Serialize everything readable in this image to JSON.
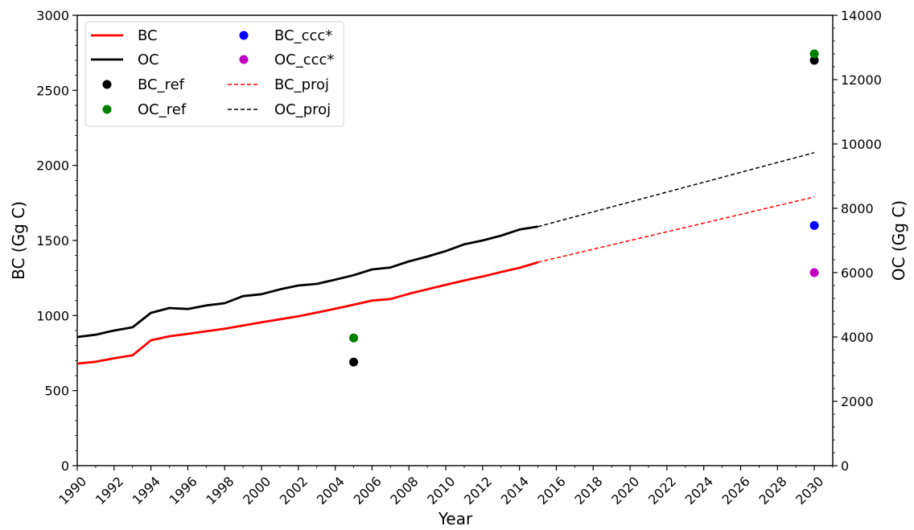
{
  "chart_data": {
    "type": "line",
    "xlabel": "Year",
    "ylabel_left": "BC (Gg C)",
    "ylabel_right": "OC (Gg C)",
    "xlim": [
      1990,
      2031
    ],
    "ylim_left": [
      0,
      3000
    ],
    "ylim_right": [
      0,
      14000
    ],
    "x_ticks": [
      "1990",
      "1992",
      "1994",
      "1996",
      "1998",
      "2000",
      "2002",
      "2004",
      "2006",
      "2008",
      "2010",
      "2012",
      "2014",
      "2016",
      "2018",
      "2020",
      "2022",
      "2024",
      "2026",
      "2028",
      "2030"
    ],
    "y_ticks_left": [
      "0",
      "500",
      "1000",
      "1500",
      "2000",
      "2500",
      "3000"
    ],
    "y_ticks_right": [
      "0",
      "2000",
      "4000",
      "6000",
      "8000",
      "10000",
      "12000",
      "14000"
    ],
    "grid": false,
    "legend": {
      "position": "top-left",
      "entries": [
        "BC",
        "OC",
        "BC_ref",
        "OC_ref",
        "BC_ccc*",
        "OC_ccc*",
        "BC_proj",
        "OC_proj"
      ]
    },
    "series": [
      {
        "name": "BC",
        "axis": "left",
        "style": "solid",
        "color": "#ff0000",
        "x": [
          1990,
          1991,
          1992,
          1993,
          1994,
          1995,
          1996,
          1997,
          1998,
          1999,
          2000,
          2001,
          2002,
          2003,
          2004,
          2005,
          2006,
          2007,
          2008,
          2009,
          2010,
          2011,
          2012,
          2013,
          2014,
          2015
        ],
        "y": [
          680,
          692,
          715,
          735,
          835,
          862,
          878,
          895,
          912,
          933,
          955,
          975,
          995,
          1020,
          1045,
          1072,
          1100,
          1110,
          1145,
          1175,
          1205,
          1233,
          1260,
          1290,
          1318,
          1355
        ]
      },
      {
        "name": "OC",
        "axis": "right",
        "style": "solid",
        "color": "#000000",
        "x": [
          1990,
          1991,
          1992,
          1993,
          1994,
          1995,
          1996,
          1997,
          1998,
          1999,
          2000,
          2001,
          2002,
          2003,
          2004,
          2005,
          2006,
          2007,
          2008,
          2009,
          2010,
          2011,
          2012,
          2013,
          2014,
          2015
        ],
        "y": [
          4000,
          4070,
          4200,
          4300,
          4750,
          4900,
          4870,
          4980,
          5050,
          5270,
          5330,
          5480,
          5600,
          5650,
          5780,
          5920,
          6100,
          6160,
          6350,
          6500,
          6670,
          6880,
          7000,
          7150,
          7340,
          7430
        ]
      },
      {
        "name": "BC_ref",
        "axis": "left",
        "style": "marker",
        "color": "#000000",
        "x": [
          2005,
          2030
        ],
        "y": [
          690,
          2700
        ]
      },
      {
        "name": "OC_ref",
        "axis": "right",
        "style": "marker",
        "color": "#008000",
        "x": [
          2005,
          2030
        ],
        "y": [
          3970,
          12800
        ]
      },
      {
        "name": "BC_ccc*",
        "axis": "left",
        "style": "marker",
        "color": "#0000ff",
        "x": [
          2030
        ],
        "y": [
          1600
        ]
      },
      {
        "name": "OC_ccc*",
        "axis": "right",
        "style": "marker",
        "color": "#c000c0",
        "x": [
          2030
        ],
        "y": [
          6000
        ]
      },
      {
        "name": "BC_proj",
        "axis": "left",
        "style": "dashed",
        "color": "#ff0000",
        "x": [
          2015,
          2030
        ],
        "y": [
          1355,
          1790
        ]
      },
      {
        "name": "OC_proj",
        "axis": "right",
        "style": "dashed",
        "color": "#000000",
        "x": [
          2015,
          2030
        ],
        "y": [
          7430,
          9730
        ]
      }
    ]
  }
}
